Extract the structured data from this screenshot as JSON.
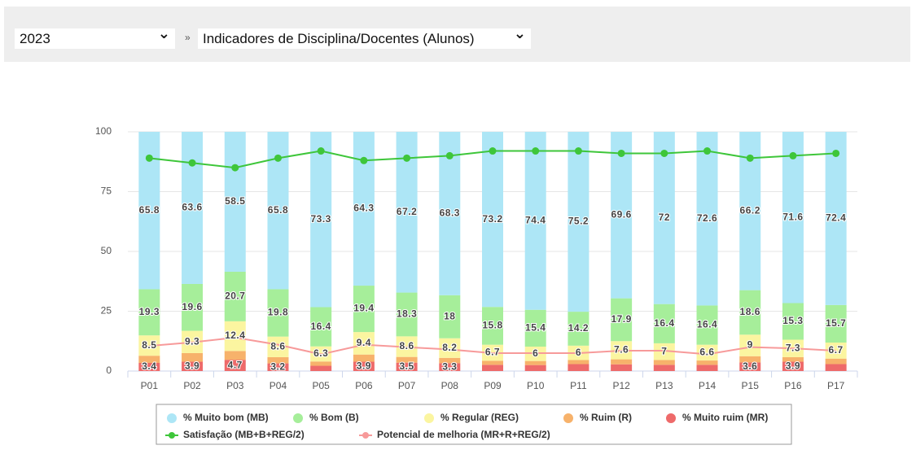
{
  "controls": {
    "year": "2023",
    "separator": "»",
    "report": "Indicadores de Disciplina/Docentes (Alunos)"
  },
  "chart_data": {
    "type": "stacked_bar_line",
    "categories": [
      "P01",
      "P02",
      "P03",
      "P04",
      "P05",
      "P06",
      "P07",
      "P08",
      "P09",
      "P10",
      "P11",
      "P12",
      "P13",
      "P14",
      "P15",
      "P16",
      "P17"
    ],
    "ylim": [
      0,
      100
    ],
    "yticks": [
      0,
      25,
      50,
      75,
      100
    ],
    "grid": true,
    "series": [
      {
        "name": "% Muito ruim (MR)",
        "color": "#ee6a6a",
        "kind": "bar",
        "data_labels": true,
        "values": [
          3.4,
          3.9,
          4.7,
          3.2,
          2.2,
          3.9,
          3.5,
          3.3,
          2.6,
          2.5,
          2.9,
          2.8,
          2.6,
          2.6,
          3.6,
          3.9,
          2.9
        ]
      },
      {
        "name": "% Ruim (R)",
        "color": "#f7b26b",
        "kind": "bar",
        "data_labels": false,
        "values": [
          3.0,
          3.6,
          3.7,
          2.6,
          1.8,
          3.0,
          2.4,
          2.2,
          1.7,
          1.7,
          1.7,
          2.1,
          2.0,
          1.8,
          2.6,
          1.9,
          2.3
        ]
      },
      {
        "name": "% Regular (REG)",
        "color": "#fbf5a0",
        "kind": "bar",
        "data_labels": true,
        "values": [
          8.5,
          9.3,
          12.4,
          8.6,
          6.3,
          9.4,
          8.6,
          8.2,
          6.7,
          6,
          6,
          7.6,
          7,
          6.6,
          9,
          7.3,
          6.7
        ]
      },
      {
        "name": "% Bom (B)",
        "color": "#a6ee9a",
        "kind": "bar",
        "data_labels": true,
        "values": [
          19.3,
          19.6,
          20.7,
          19.8,
          16.4,
          19.4,
          18.3,
          18,
          15.8,
          15.4,
          14.2,
          17.9,
          16.4,
          16.4,
          18.6,
          15.3,
          15.7
        ]
      },
      {
        "name": "% Muito bom (MB)",
        "color": "#ade6f6",
        "kind": "bar",
        "data_labels": true,
        "values": [
          65.8,
          63.6,
          58.5,
          65.8,
          73.3,
          64.3,
          67.2,
          68.3,
          73.2,
          74.4,
          75.2,
          69.6,
          72,
          72.6,
          66.2,
          71.6,
          72.4
        ]
      },
      {
        "name": "Satisfação (MB+B+REG/2)",
        "color": "#3ec63a",
        "kind": "line",
        "markers": true,
        "values": [
          89,
          87,
          85,
          89,
          92,
          88,
          89,
          90,
          92,
          92,
          92,
          91,
          91,
          92,
          89,
          90,
          91
        ]
      },
      {
        "name": "Potencial de melhoria (MR+R+REG/2)",
        "color": "#f79a9a",
        "kind": "line",
        "markers": false,
        "values": [
          10.5,
          12,
          14,
          11,
          7,
          11,
          10,
          9,
          7.5,
          7.5,
          7.5,
          8.5,
          8.5,
          7,
          10,
          9.5,
          8.5
        ]
      }
    ],
    "legend_order": [
      4,
      3,
      2,
      1,
      0,
      5,
      6
    ]
  }
}
